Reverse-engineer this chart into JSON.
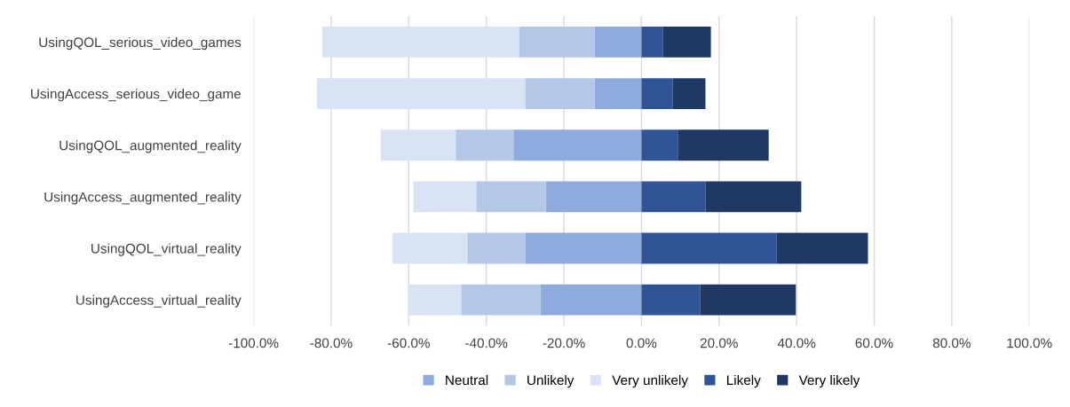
{
  "chart_data": {
    "type": "bar",
    "orientation": "horizontal",
    "stacked": true,
    "categories": [
      "UsingQOL_serious_video_games",
      "UsingAccess_serious_video_game",
      "UsingQOL_augmented_reality",
      "UsingAccess_augmented_reality",
      "UsingQOL_virtual_reality",
      "UsingAccess_virtual_reality"
    ],
    "series": [
      {
        "name": "Neutral",
        "color": "#8faadc",
        "values": [
          -12.1,
          -12.1,
          -33.0,
          -24.7,
          -30.0,
          -26.0
        ]
      },
      {
        "name": "Unlikely",
        "color": "#b4c7e7",
        "values": [
          -19.5,
          -17.9,
          -14.9,
          -17.9,
          -14.9,
          -20.5
        ]
      },
      {
        "name": "Very unlikely",
        "color": "#dae3f3",
        "values": [
          -50.7,
          -53.7,
          -19.3,
          -16.2,
          -19.3,
          -13.7
        ]
      },
      {
        "name": "Likely",
        "color": "#2f5597",
        "values": [
          5.6,
          8.1,
          9.5,
          16.5,
          34.9,
          15.1
        ]
      },
      {
        "name": "Very likely",
        "color": "#203864",
        "values": [
          12.3,
          8.4,
          23.3,
          24.7,
          23.5,
          24.7
        ]
      }
    ],
    "xlim": [
      -100,
      100
    ],
    "xticks": [
      {
        "value": -100,
        "label": "-100.0%"
      },
      {
        "value": -80,
        "label": "-80.0%"
      },
      {
        "value": -60,
        "label": "-60.0%"
      },
      {
        "value": -40,
        "label": "-40.0%"
      },
      {
        "value": -20,
        "label": "-20.0%"
      },
      {
        "value": 0,
        "label": "0.0%"
      },
      {
        "value": 20,
        "label": "20.0%"
      },
      {
        "value": 40,
        "label": "40.0%"
      },
      {
        "value": 60,
        "label": "60.0%"
      },
      {
        "value": 80,
        "label": "80.0%"
      },
      {
        "value": 100,
        "label": "100.0%"
      }
    ],
    "grid": "x",
    "legend": "bottom"
  }
}
